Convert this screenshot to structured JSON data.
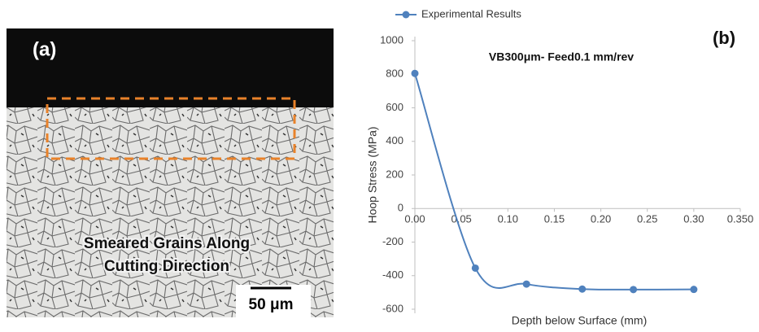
{
  "micrograph": {
    "label": "(a)",
    "caption_lines": [
      "Smeared Grains Along",
      "Cutting Direction"
    ],
    "scale_bar": "50 μm"
  },
  "chart_data": {
    "type": "line",
    "panel_label": "(b)",
    "title": "VB300μm- Feed0.1 mm/rev",
    "x_label": "Depth below Surface (mm)",
    "y_label": "Hoop Stress (MPa)",
    "x": [
      0,
      0.065,
      0.12,
      0.18,
      0.235,
      0.3
    ],
    "series": [
      {
        "name": "Experimental Results",
        "color": "#4f81bd",
        "values": [
          805,
          -355,
          -450,
          -480,
          -483,
          -482
        ]
      }
    ],
    "xlim": [
      0,
      0.35
    ],
    "xticks": [
      {
        "value": 0,
        "label": "0.00"
      },
      {
        "value": 0.05,
        "label": "0.05"
      },
      {
        "value": 0.1,
        "label": "0.10"
      },
      {
        "value": 0.15,
        "label": "0.15"
      },
      {
        "value": 0.2,
        "label": "0.20"
      },
      {
        "value": 0.25,
        "label": "0.25"
      },
      {
        "value": 0.3,
        "label": "0.30"
      },
      {
        "value": 0.35,
        "label": "0.350"
      }
    ],
    "ylim": [
      -600,
      1000
    ],
    "yticks": [
      -600,
      -400,
      -200,
      0,
      200,
      400,
      600,
      800,
      1000
    ],
    "smooth": true,
    "legend": "top"
  }
}
